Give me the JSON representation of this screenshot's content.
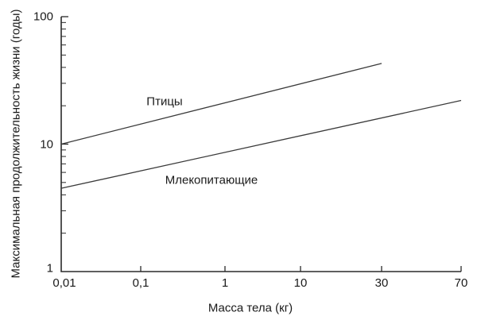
{
  "figure": {
    "background": "#ffffff",
    "text_color": "#1a1a1a",
    "axis_color": "#2a2a2a",
    "line_color": "#3a3a3a"
  },
  "chart_data": {
    "type": "line",
    "title": "",
    "xlabel": "Масса тела (кг)",
    "ylabel": "Максимальная продолжительность жизни (годы)",
    "x_scale": "log",
    "y_scale": "log",
    "xlim": [
      0.01,
      70
    ],
    "ylim": [
      1,
      100
    ],
    "grid": false,
    "legend_position": "inline-annotations",
    "x_ticks": [
      {
        "value": 0.01,
        "label": "0,01"
      },
      {
        "value": 0.1,
        "label": "0,1"
      },
      {
        "value": 1,
        "label": "1"
      },
      {
        "value": 10,
        "label": "10"
      },
      {
        "value": 30,
        "label": "30"
      },
      {
        "value": 70,
        "label": "70"
      }
    ],
    "y_ticks": [
      {
        "value": 1,
        "label": "1"
      },
      {
        "value": 10,
        "label": "10"
      },
      {
        "value": 100,
        "label": "100"
      }
    ],
    "y_minor_ticks": [
      2,
      3,
      4,
      5,
      6,
      7,
      8,
      9,
      20,
      30,
      40,
      50,
      60,
      70,
      80,
      90
    ],
    "series": [
      {
        "name": "Птицы",
        "points": [
          {
            "x": 0.01,
            "y": 10
          },
          {
            "x": 30,
            "y": 43
          }
        ]
      },
      {
        "name": "Млекопитающие",
        "points": [
          {
            "x": 0.01,
            "y": 4.5
          },
          {
            "x": 70,
            "y": 22
          }
        ]
      }
    ]
  }
}
